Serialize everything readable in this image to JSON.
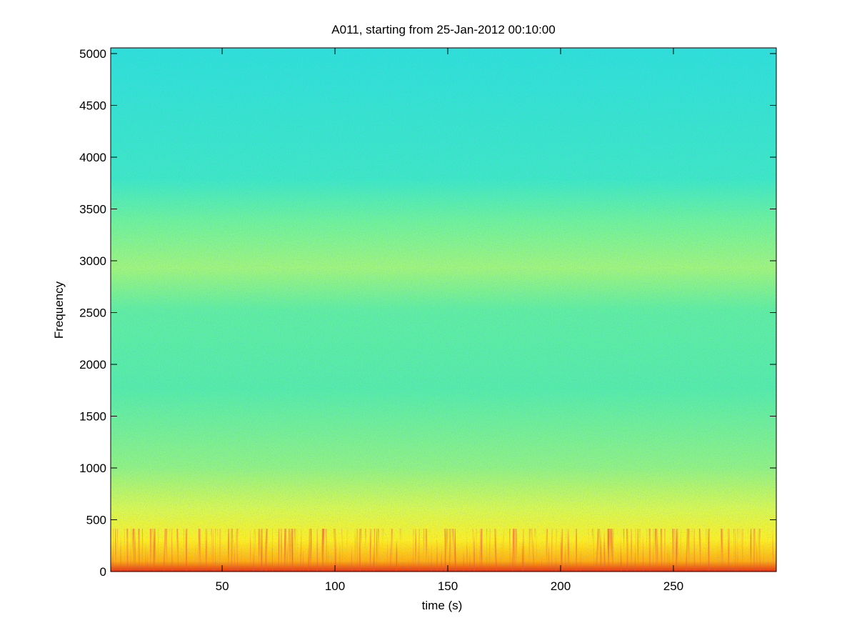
{
  "chart_data": {
    "type": "spectrogram",
    "title": "A011, starting from 25-Jan-2012 00:10:00",
    "x_label": "time (s)",
    "y_label": "Frequency",
    "xlim": [
      0.6,
      295.6
    ],
    "xticks": [
      50,
      100,
      150,
      200,
      250
    ],
    "ylim": [
      0,
      5055
    ],
    "yticks": [
      0,
      500,
      1000,
      1500,
      2000,
      2500,
      3000,
      3500,
      4000,
      4500,
      5000
    ]
  }
}
